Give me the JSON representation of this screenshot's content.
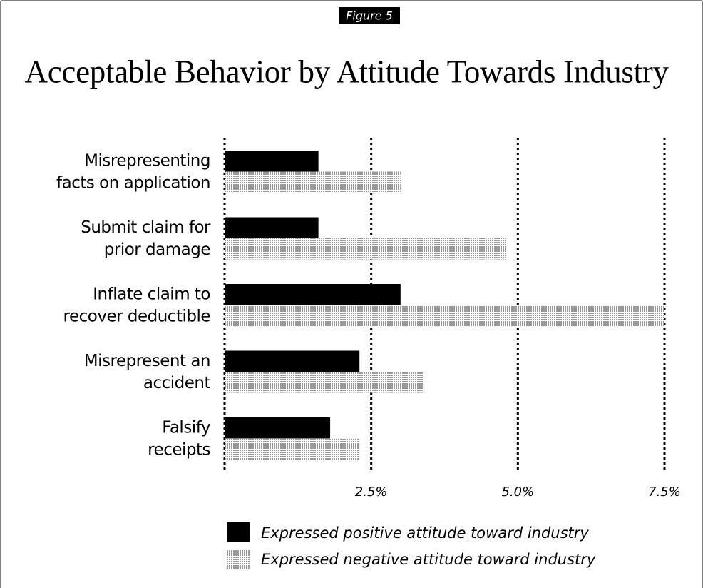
{
  "chart_data": {
    "type": "hbar",
    "figure_label": "Figure 5",
    "title": "Acceptable Behavior by Attitude Towards Industry",
    "categories": [
      [
        "Misrepresenting",
        "facts on application"
      ],
      [
        "Submit claim for",
        "prior damage"
      ],
      [
        "Inflate claim to",
        "recover deductible"
      ],
      [
        "Misrepresent an",
        "accident"
      ],
      [
        "Falsify",
        "receipts"
      ]
    ],
    "series": [
      {
        "name": "Expressed positive attitude toward industry",
        "color": "#000000",
        "values": [
          1.6,
          1.6,
          3.0,
          2.3,
          1.8
        ]
      },
      {
        "name": "Expressed negative attitude toward industry",
        "color": "#9a9a9a",
        "pattern": "dots",
        "values": [
          3.0,
          4.8,
          7.5,
          3.4,
          2.3
        ]
      }
    ],
    "xlim": [
      0,
      7.5
    ],
    "xticks": [
      {
        "value": 2.5,
        "label": "2.5%"
      },
      {
        "value": 5.0,
        "label": "5.0%"
      },
      {
        "value": 7.5,
        "label": "7.5%"
      }
    ],
    "grid": true,
    "legend": "bottom"
  }
}
